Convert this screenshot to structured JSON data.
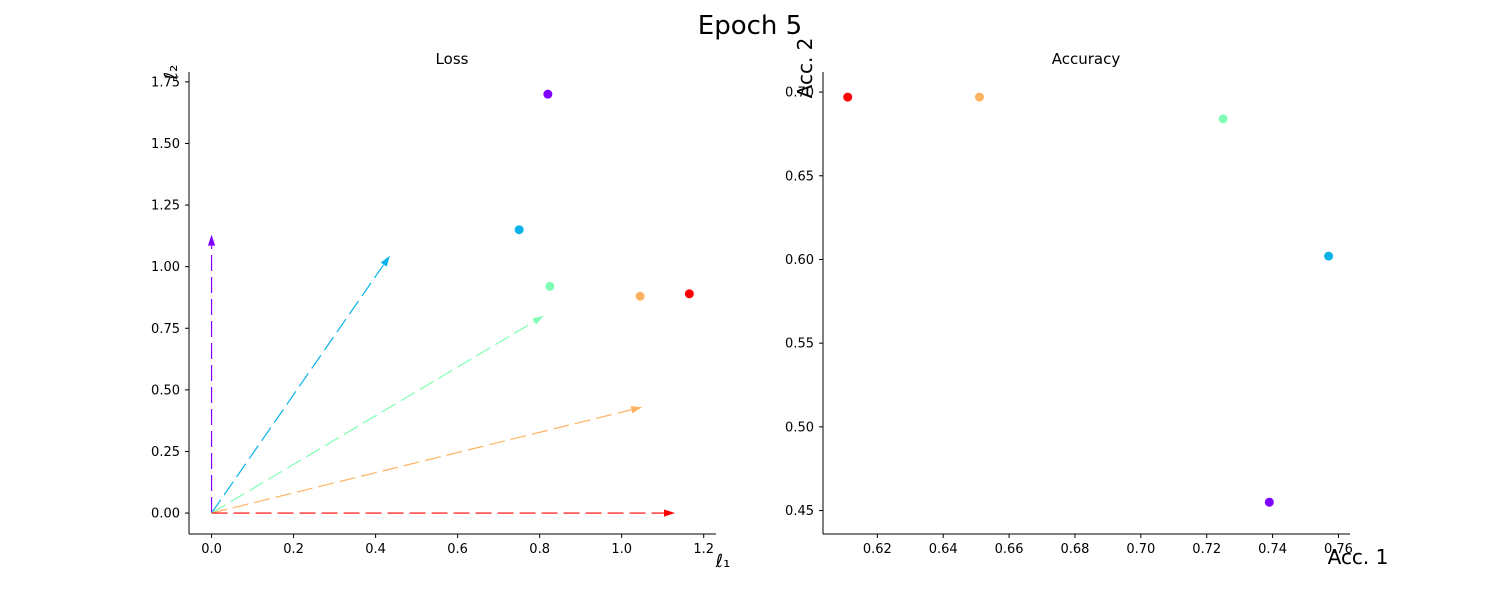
{
  "figure": {
    "suptitle": "Epoch 5"
  },
  "chart_data": [
    {
      "type": "scatter",
      "title": "Loss",
      "xlabel": "ℓ₁",
      "ylabel": "ℓ₂",
      "xlim": [
        -0.055,
        1.23
      ],
      "ylim": [
        -0.085,
        1.79
      ],
      "xticks": [
        0.0,
        0.2,
        0.4,
        0.6,
        0.8,
        1.0,
        1.2
      ],
      "xtick_labels": [
        "0.0",
        "0.2",
        "0.4",
        "0.6",
        "0.8",
        "1.0",
        "1.2"
      ],
      "yticks": [
        0.0,
        0.25,
        0.5,
        0.75,
        1.0,
        1.25,
        1.5,
        1.75
      ],
      "ytick_labels": [
        "0.00",
        "0.25",
        "0.50",
        "0.75",
        "1.00",
        "1.25",
        "1.50",
        "1.75"
      ],
      "grid": false,
      "points": [
        {
          "x": 0.82,
          "y": 1.7,
          "color": "#8000ff"
        },
        {
          "x": 0.75,
          "y": 1.15,
          "color": "#09b3ea"
        },
        {
          "x": 0.825,
          "y": 0.92,
          "color": "#80ffb4"
        },
        {
          "x": 1.045,
          "y": 0.88,
          "color": "#ffb360"
        },
        {
          "x": 1.165,
          "y": 0.89,
          "color": "#ff0000"
        }
      ],
      "arrows": [
        {
          "x0": 0,
          "y0": 0,
          "x1": 0.0,
          "y1": 1.13,
          "color": "#8000ff"
        },
        {
          "x0": 0,
          "y0": 0,
          "x1": 0.435,
          "y1": 1.045,
          "color": "#09b3ea"
        },
        {
          "x0": 0,
          "y0": 0,
          "x1": 0.81,
          "y1": 0.8,
          "color": "#80ffb4"
        },
        {
          "x0": 0,
          "y0": 0,
          "x1": 1.05,
          "y1": 0.43,
          "color": "#ffb360"
        },
        {
          "x0": 0,
          "y0": 0,
          "x1": 1.13,
          "y1": 0.0,
          "color": "#ff0000"
        }
      ]
    },
    {
      "type": "scatter",
      "title": "Accuracy",
      "xlabel": "Acc. 1",
      "ylabel": "Acc. 2",
      "xlim": [
        0.6035,
        0.7635
      ],
      "ylim": [
        0.436,
        0.712
      ],
      "xticks": [
        0.62,
        0.64,
        0.66,
        0.68,
        0.7,
        0.72,
        0.74,
        0.76
      ],
      "xtick_labels": [
        "0.62",
        "0.64",
        "0.66",
        "0.68",
        "0.70",
        "0.72",
        "0.74",
        "0.76"
      ],
      "yticks": [
        0.45,
        0.5,
        0.55,
        0.6,
        0.65,
        0.7
      ],
      "ytick_labels": [
        "0.45",
        "0.50",
        "0.55",
        "0.60",
        "0.65",
        "0.70"
      ],
      "grid": false,
      "points": [
        {
          "x": 0.611,
          "y": 0.697,
          "color": "#ff0000"
        },
        {
          "x": 0.651,
          "y": 0.697,
          "color": "#ffb360"
        },
        {
          "x": 0.725,
          "y": 0.684,
          "color": "#80ffb4"
        },
        {
          "x": 0.757,
          "y": 0.602,
          "color": "#09b3ea"
        },
        {
          "x": 0.739,
          "y": 0.455,
          "color": "#8000ff"
        }
      ]
    }
  ]
}
